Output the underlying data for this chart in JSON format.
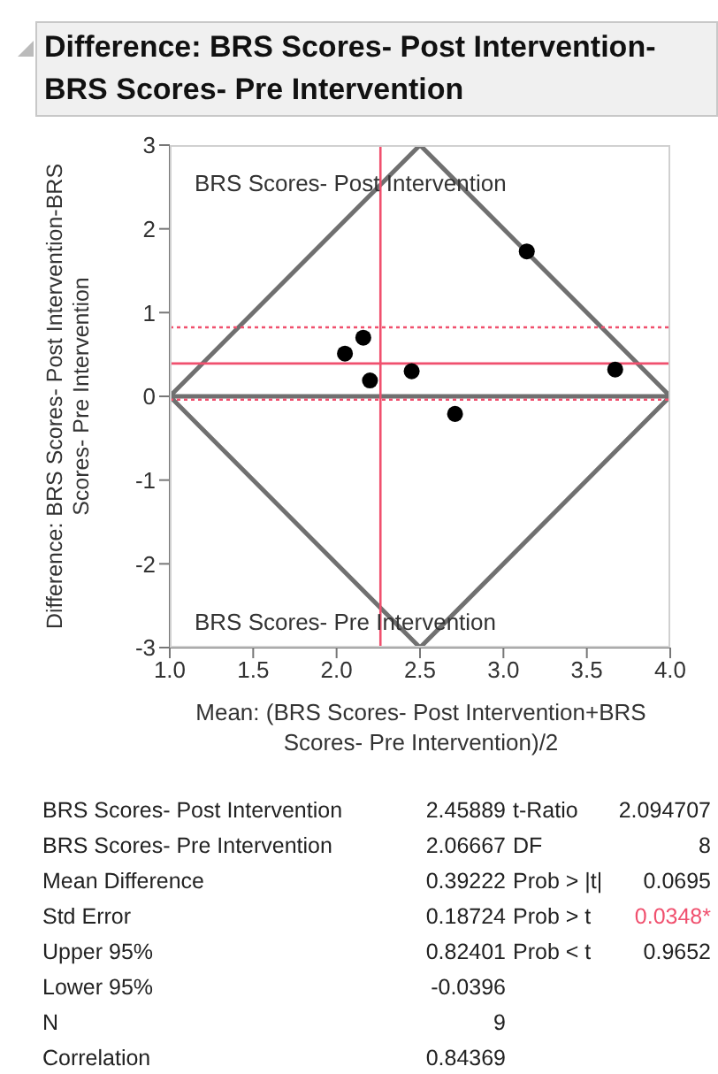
{
  "chart_data": {
    "type": "scatter",
    "title": "Difference: BRS Scores- Post Intervention-BRS Scores- Pre Intervention",
    "xlabel": "Mean: (BRS Scores- Post Intervention+BRS Scores- Pre Intervention)/2",
    "ylabel": "Difference: BRS Scores- Post Intervention-BRS Scores- Pre Intervention",
    "xlim": [
      1,
      4
    ],
    "xticks": [
      {
        "value": 1,
        "label": "1.0"
      },
      {
        "value": 1.5,
        "label": "1.5"
      },
      {
        "value": 2,
        "label": "2.0"
      },
      {
        "value": 2.5,
        "label": "2.5"
      },
      {
        "value": 3,
        "label": "3.0"
      },
      {
        "value": 3.5,
        "label": "3.5"
      },
      {
        "value": 4,
        "label": "4.0"
      }
    ],
    "ylim": [
      -3,
      3
    ],
    "yticks": [
      -3,
      -2,
      -1,
      0,
      1,
      2,
      3
    ],
    "grid": false,
    "marker": "circle",
    "series": [
      {
        "type": "scatter",
        "color": "#000000",
        "x": [
          2.05,
          2.16,
          2.2,
          2.45,
          2.71,
          3.14,
          3.67
        ],
        "values": [
          0.51,
          0.7,
          0.19,
          0.3,
          -0.21,
          1.73,
          0.32
        ]
      },
      {
        "type": "line",
        "color": "#707070",
        "marker": "none",
        "x": [
          4,
          2.5,
          1,
          2.5,
          4,
          1
        ],
        "values": [
          0,
          3,
          0,
          -3,
          0,
          0
        ]
      }
    ],
    "ref_lines": [
      {
        "axis": "y",
        "value": 0.39222,
        "color": "#f0506e"
      },
      {
        "axis": "y",
        "value": 0.82401,
        "color": "#f0506e",
        "line_style": "dotted"
      },
      {
        "axis": "y",
        "value": -0.0396,
        "color": "#f0506e",
        "line_style": "dotted"
      },
      {
        "axis": "x",
        "value": 2.26278,
        "color": "#f0506e"
      }
    ],
    "annotations": [
      "BRS Scores- Post Intervention",
      "BRS Scores- Pre Intervention",
      "BRS Scores- Post Intervention",
      "2.45889",
      "BRS Scores- Pre Intervention",
      "2.06667",
      "Mean Difference",
      "0.39222",
      "Std Error",
      "0.18724",
      "Upper 95%",
      "0.82401",
      "Lower 95%",
      "-0.0396",
      "N",
      "9",
      "Correlation",
      "0.84369",
      "t-Ratio",
      "2.094707",
      "DF",
      "8",
      "Prob > |t|",
      "0.0695",
      "Prob > t",
      "0.0348*",
      "Prob < t",
      "0.9652"
    ]
  }
}
